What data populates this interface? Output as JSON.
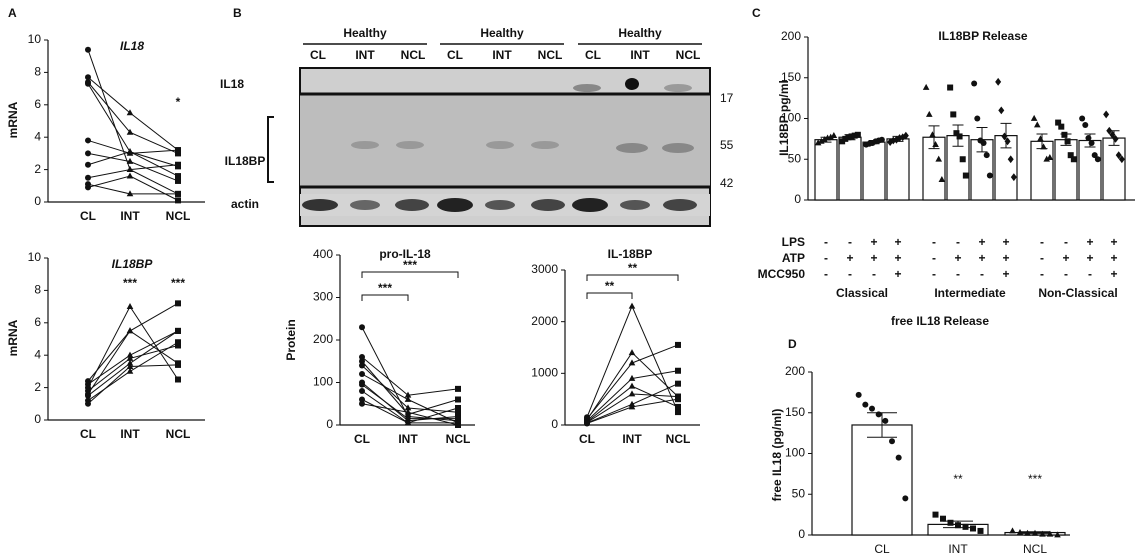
{
  "panel_labels": [
    "A",
    "B",
    "C",
    "D"
  ],
  "blot": {
    "groups": [
      "Healthy",
      "Healthy",
      "Healthy"
    ],
    "lanes": [
      "CL",
      "INT",
      "NCL"
    ],
    "rows": [
      "IL18",
      "IL18BP",
      "actin"
    ],
    "markers": [
      17,
      55,
      42
    ]
  },
  "chart_data": [
    {
      "type": "line",
      "title": "IL18",
      "y_label": "mRNA",
      "categories": [
        "CL",
        "INT",
        "NCL"
      ],
      "markers": [
        "circle",
        "triangle",
        "square"
      ],
      "ylim": [
        0,
        10
      ],
      "yticks": [
        0,
        2,
        4,
        6,
        8,
        10
      ],
      "significance": [
        null,
        null,
        "*"
      ],
      "significance_style": "label",
      "color": "#111",
      "series": [
        {
          "values": [
            9.4,
            2.0,
            0.5
          ]
        },
        {
          "values": [
            7.7,
            5.5,
            3.2
          ]
        },
        {
          "values": [
            7.4,
            4.3,
            3.0
          ]
        },
        {
          "values": [
            7.3,
            3.1,
            2.2
          ]
        },
        {
          "values": [
            3.8,
            3.0,
            3.2
          ]
        },
        {
          "values": [
            3.0,
            2.5,
            1.3
          ]
        },
        {
          "values": [
            2.3,
            3.1,
            1.6
          ]
        },
        {
          "values": [
            1.5,
            2.0,
            2.3
          ]
        },
        {
          "values": [
            1.1,
            0.5,
            0.5
          ]
        },
        {
          "values": [
            0.9,
            1.6,
            0.1
          ]
        }
      ]
    },
    {
      "type": "line",
      "title": "IL18BP",
      "y_label": "mRNA",
      "categories": [
        "CL",
        "INT",
        "NCL"
      ],
      "markers": [
        "circle",
        "triangle",
        "square"
      ],
      "ylim": [
        0,
        10
      ],
      "yticks": [
        0,
        2,
        4,
        6,
        8,
        10
      ],
      "significance": [
        null,
        "***",
        "***"
      ],
      "significance_style": "label",
      "color": "#111",
      "series": [
        {
          "values": [
            2.4,
            5.5,
            7.2
          ]
        },
        {
          "values": [
            2.2,
            4.0,
            5.5
          ]
        },
        {
          "values": [
            2.0,
            7.0,
            2.5
          ]
        },
        {
          "values": [
            1.8,
            3.8,
            4.6
          ]
        },
        {
          "values": [
            1.6,
            5.5,
            3.5
          ]
        },
        {
          "values": [
            1.5,
            3.5,
            5.5
          ]
        },
        {
          "values": [
            1.2,
            3.0,
            4.8
          ]
        },
        {
          "values": [
            1.0,
            3.3,
            3.4
          ]
        }
      ]
    },
    {
      "type": "line",
      "title": "pro-IL-18",
      "y_label": "Protein",
      "categories": [
        "CL",
        "INT",
        "NCL"
      ],
      "markers": [
        "circle",
        "triangle",
        "square"
      ],
      "ylim": [
        0,
        400
      ],
      "yticks": [
        0,
        100,
        200,
        300,
        400
      ],
      "significance": [
        null,
        "***",
        "***"
      ],
      "significance_style": "bracket",
      "color": "#111",
      "series": [
        {
          "values": [
            230,
            20,
            10
          ]
        },
        {
          "values": [
            160,
            70,
            85
          ]
        },
        {
          "values": [
            150,
            25,
            60
          ]
        },
        {
          "values": [
            140,
            40,
            30
          ]
        },
        {
          "values": [
            120,
            60,
            5
          ]
        },
        {
          "values": [
            100,
            10,
            20
          ]
        },
        {
          "values": [
            95,
            15,
            15
          ]
        },
        {
          "values": [
            80,
            5,
            40
          ]
        },
        {
          "values": [
            60,
            5,
            5
          ]
        },
        {
          "values": [
            50,
            30,
            0
          ]
        }
      ]
    },
    {
      "type": "line",
      "title": "IL-18BP",
      "categories": [
        "CL",
        "INT",
        "NCL"
      ],
      "markers": [
        "circle",
        "triangle",
        "square"
      ],
      "ylim": [
        0,
        3000
      ],
      "yticks": [
        0,
        1000,
        2000,
        3000
      ],
      "significance": [
        null,
        "**",
        "**"
      ],
      "significance_style": "bracket",
      "color": "#111",
      "series": [
        {
          "values": [
            150,
            2300,
            250
          ]
        },
        {
          "values": [
            100,
            1400,
            550
          ]
        },
        {
          "values": [
            120,
            1200,
            1550
          ]
        },
        {
          "values": [
            80,
            900,
            1050
          ]
        },
        {
          "values": [
            60,
            750,
            350
          ]
        },
        {
          "values": [
            50,
            600,
            550
          ]
        },
        {
          "values": [
            40,
            400,
            800
          ]
        },
        {
          "values": [
            30,
            350,
            500
          ]
        }
      ]
    },
    {
      "type": "bar",
      "title": "IL18BP Release",
      "y_label": "IL18BP pg/ml",
      "ylim": [
        0,
        200
      ],
      "yticks": [
        0,
        50,
        100,
        150,
        200
      ],
      "color": "#ffffff",
      "groups": [
        "Classical",
        "Intermediate",
        "Non-Classical"
      ],
      "treatments": [
        {
          "name": "LPS",
          "signs": [
            "-",
            "-",
            "+",
            "+"
          ]
        },
        {
          "name": "ATP",
          "signs": [
            "-",
            "+",
            "+",
            "+"
          ]
        },
        {
          "name": "MCC950",
          "signs": [
            "-",
            "-",
            "-",
            "+"
          ]
        }
      ],
      "point_markers": [
        "triangle",
        "square",
        "circle",
        "diamond"
      ],
      "values": [
        74,
        77,
        71,
        75,
        77,
        79,
        74,
        79,
        72,
        74,
        73,
        76
      ],
      "errors": [
        3,
        3,
        2,
        3,
        14,
        13,
        15,
        15,
        9,
        7,
        8,
        9
      ],
      "points": [
        [
          70,
          72,
          74,
          76,
          77,
          79
        ],
        [
          72,
          75,
          77,
          78,
          79,
          80
        ],
        [
          68,
          69,
          70,
          72,
          73,
          74
        ],
        [
          71,
          73,
          74,
          76,
          77,
          79
        ],
        [
          138,
          105,
          80,
          68,
          50,
          25
        ],
        [
          138,
          105,
          82,
          78,
          50,
          30
        ],
        [
          143,
          100,
          73,
          70,
          55,
          30
        ],
        [
          145,
          110,
          78,
          72,
          50,
          28
        ],
        [
          100,
          92,
          75,
          65,
          50,
          52
        ],
        [
          95,
          90,
          80,
          72,
          55,
          50
        ],
        [
          100,
          92,
          76,
          70,
          55,
          50
        ],
        [
          105,
          85,
          80,
          75,
          55,
          50
        ]
      ]
    },
    {
      "type": "bar",
      "title": "free IL18 Release",
      "y_label": "free IL18 (pg/ml)",
      "ylim": [
        0,
        200
      ],
      "yticks": [
        0,
        50,
        100,
        150,
        200
      ],
      "color": "#ffffff",
      "categories": [
        "CL",
        "INT",
        "NCL"
      ],
      "point_markers": [
        "circle",
        "square",
        "triangle"
      ],
      "significance": [
        null,
        "**",
        "***"
      ],
      "values": [
        135,
        13,
        3
      ],
      "errors": [
        15,
        4,
        1
      ],
      "points": [
        [
          172,
          160,
          155,
          148,
          140,
          115,
          95,
          45
        ],
        [
          25,
          20,
          15,
          12,
          10,
          8,
          5
        ],
        [
          5,
          3,
          2,
          2,
          1,
          1,
          0
        ]
      ]
    }
  ]
}
